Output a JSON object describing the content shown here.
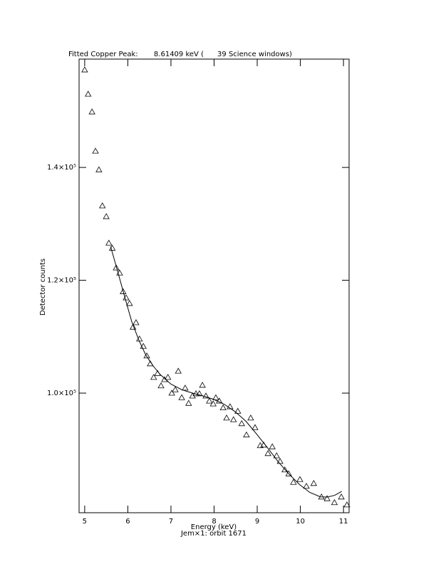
{
  "chart_data": {
    "type": "scatter",
    "title": "Fitted Copper Peak:       8.61409 keV (      39 Science windows)",
    "x_label": "Energy (keV)",
    "subtitle": "Jem×1: orbit 1671",
    "y_label": "Detector counts",
    "xlim": [
      4.87,
      11.13
    ],
    "ylim": [
      78800,
      159200
    ],
    "xticks": [
      5,
      6,
      7,
      8,
      9,
      10,
      11
    ],
    "yticks": [
      {
        "value": 100000,
        "label": "1.0×10⁵"
      },
      {
        "value": 120000,
        "label": "1.2×10⁵"
      },
      {
        "value": 140000,
        "label": "1.4×10⁵"
      }
    ],
    "series": [
      {
        "type": "scatter",
        "marker": "triangle",
        "color": "#000000",
        "x": [
          5.0,
          5.08,
          5.17,
          5.25,
          5.33,
          5.41,
          5.5,
          5.56,
          5.64,
          5.73,
          5.81,
          5.89,
          5.96,
          6.04,
          6.12,
          6.19,
          6.27,
          6.36,
          6.44,
          6.52,
          6.6,
          6.69,
          6.77,
          6.85,
          6.93,
          7.02,
          7.1,
          7.17,
          7.25,
          7.33,
          7.41,
          7.5,
          7.58,
          7.66,
          7.73,
          7.81,
          7.89,
          7.98,
          8.04,
          8.12,
          8.21,
          8.29,
          8.37,
          8.45,
          8.55,
          8.64,
          8.75,
          8.85,
          8.95,
          9.07,
          9.15,
          9.25,
          9.35,
          9.45,
          9.53,
          9.64,
          9.73,
          9.84,
          9.99,
          10.14,
          10.31,
          10.49,
          10.62,
          10.79,
          10.95,
          11.08
        ],
        "values": [
          157300,
          153000,
          149850,
          142900,
          139600,
          133200,
          131300,
          126600,
          125700,
          122200,
          121300,
          118000,
          116900,
          115900,
          111700,
          112500,
          109600,
          108300,
          106600,
          105200,
          102800,
          103500,
          101300,
          102400,
          102800,
          100000,
          100600,
          103900,
          99200,
          100900,
          98200,
          99500,
          99900,
          99900,
          101400,
          99500,
          98600,
          98100,
          99200,
          98600,
          97400,
          95600,
          97600,
          95300,
          96800,
          94600,
          92600,
          95600,
          93900,
          90700,
          90800,
          89300,
          90500,
          88900,
          87900,
          86400,
          85700,
          84200,
          84700,
          83500,
          84000,
          81600,
          81300,
          80600,
          81600,
          80200
        ]
      },
      {
        "type": "line",
        "color": "#000000",
        "x": [
          5.6,
          5.76,
          5.93,
          6.09,
          6.26,
          6.42,
          6.59,
          6.75,
          7.0,
          7.25,
          7.5,
          7.74,
          7.99,
          8.24,
          8.49,
          8.74,
          8.98,
          9.23,
          9.48,
          9.73,
          9.98,
          10.22,
          10.47,
          10.64,
          10.8,
          10.96
        ],
        "values": [
          126000,
          121700,
          117000,
          112700,
          109300,
          106700,
          104800,
          103300,
          101600,
          100600,
          100000,
          99500,
          98900,
          98000,
          96700,
          95000,
          92800,
          90400,
          87900,
          85700,
          83800,
          82400,
          81600,
          81600,
          81900,
          82600
        ]
      }
    ]
  }
}
